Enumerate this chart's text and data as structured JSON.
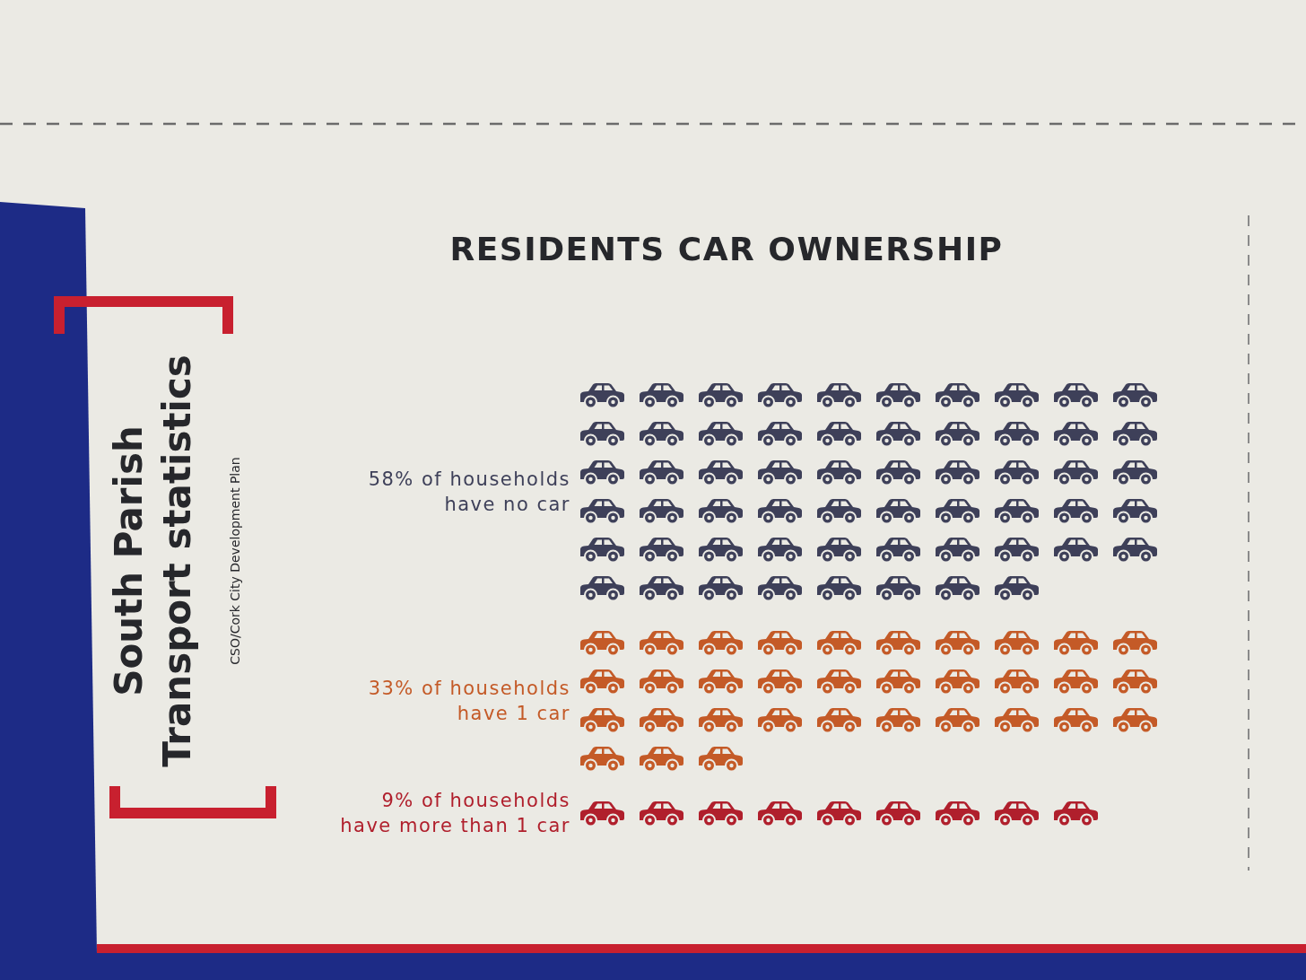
{
  "chart_data": {
    "type": "other",
    "title": "RESIDENTS CAR OWNERSHIP",
    "categories": [
      "have no car",
      "have 1 car",
      "have more than 1 car"
    ],
    "values": [
      58,
      33,
      9
    ],
    "value_labels": [
      "58% of households",
      "33% of households",
      "9% of households"
    ],
    "colors": [
      "#3e4059",
      "#c45a27",
      "#b01f2c"
    ],
    "annotations": [
      "South Parish\nTransport statistics",
      "CSO/Cork City Development Plan"
    ]
  }
}
